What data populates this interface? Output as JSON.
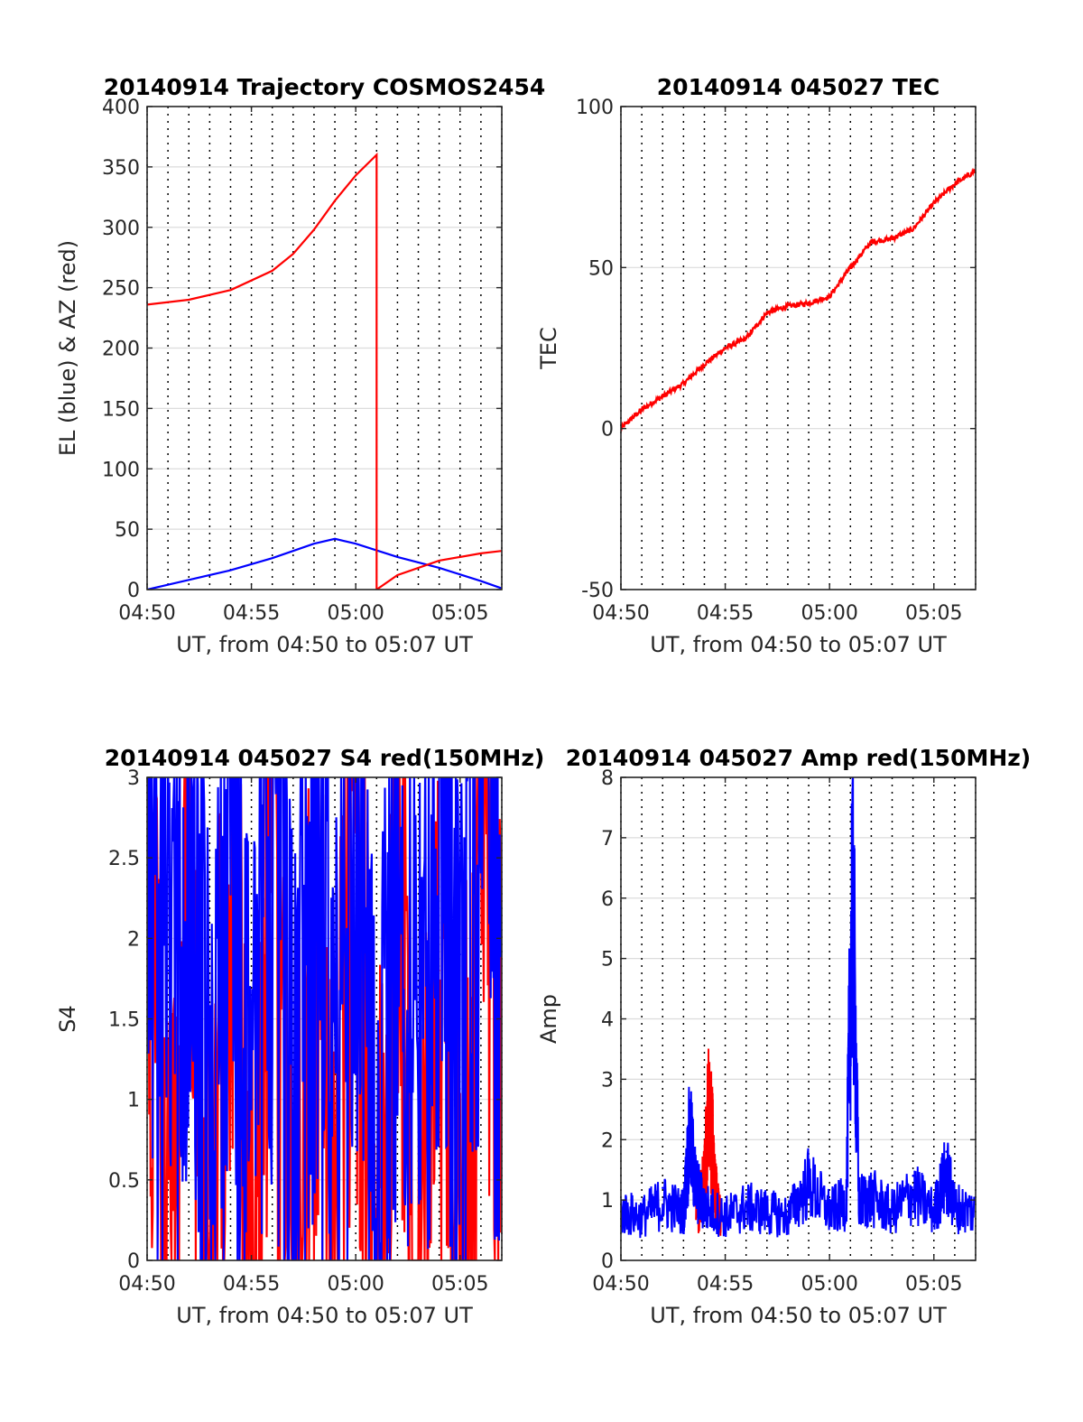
{
  "chart_data": [
    {
      "type": "line",
      "title": "20140914 Trajectory COSMOS2454",
      "xlabel": "UT, from 04:50 to 05:07 UT",
      "ylabel": "EL (blue) & AZ (red)",
      "xlim": [
        "04:50",
        "05:07"
      ],
      "ylim": [
        0,
        400
      ],
      "x_ticks": [
        "04:50",
        "04:55",
        "05:00",
        "05:05"
      ],
      "y_ticks": [
        0,
        50,
        100,
        150,
        200,
        250,
        300,
        350,
        400
      ],
      "grid": true,
      "series": [
        {
          "color": "#0000ff",
          "x": [
            "04:50",
            "04:52",
            "04:54",
            "04:56",
            "04:58",
            "04:59",
            "05:00",
            "05:02",
            "05:04",
            "05:06",
            "05:07"
          ],
          "values": [
            0,
            8,
            16,
            26,
            38,
            42,
            38,
            27,
            18,
            7,
            1
          ]
        },
        {
          "color": "#ff0000",
          "x": [
            "04:50",
            "04:52",
            "04:54",
            "04:56",
            "04:57",
            "04:58",
            "04:59",
            "05:00",
            "05:01",
            "05:01",
            "05:02",
            "05:04",
            "05:06",
            "05:07"
          ],
          "values": [
            236,
            240,
            248,
            264,
            278,
            298,
            322,
            343,
            360,
            0,
            12,
            24,
            30,
            32
          ]
        }
      ]
    },
    {
      "type": "line",
      "title": "20140914 045027 TEC",
      "xlabel": "UT, from 04:50 to 05:07 UT",
      "ylabel": "TEC",
      "xlim": [
        "04:50",
        "05:07"
      ],
      "ylim": [
        -50,
        100
      ],
      "x_ticks": [
        "04:50",
        "04:55",
        "05:00",
        "05:05"
      ],
      "y_ticks": [
        -50,
        0,
        50,
        100
      ],
      "grid": true,
      "series": [
        {
          "color": "#ff0000",
          "x": [
            "04:50",
            "04:51",
            "04:52",
            "04:53",
            "04:54",
            "04:55",
            "04:56",
            "04:57",
            "04:58",
            "04:59",
            "05:00",
            "05:01",
            "05:02",
            "05:03",
            "05:04",
            "05:05",
            "05:06",
            "05:07"
          ],
          "values": [
            0,
            6,
            10,
            14,
            20,
            25,
            28,
            36,
            38,
            39,
            41,
            50,
            58,
            59,
            62,
            70,
            76,
            80
          ]
        }
      ]
    },
    {
      "type": "line",
      "title": "20140914 045027 S4 red(150MHz)",
      "xlabel": "UT, from 04:50 to 05:07 UT",
      "ylabel": "S4",
      "xlim": [
        "04:50",
        "05:07"
      ],
      "ylim": [
        0,
        3
      ],
      "x_ticks": [
        "04:50",
        "04:55",
        "05:00",
        "05:05"
      ],
      "y_ticks": [
        0,
        0.5,
        1,
        1.5,
        2,
        2.5,
        3
      ],
      "grid": true,
      "series": [
        {
          "color": "#ff0000",
          "x": [
            "04:50",
            "04:51",
            "04:52",
            "04:53",
            "04:54",
            "04:55",
            "04:56",
            "04:57",
            "04:58",
            "04:59",
            "05:00",
            "05:01",
            "05:02",
            "05:03",
            "05:04",
            "05:05",
            "05:06",
            "05:07"
          ],
          "values": [
            3,
            0,
            2.5,
            0,
            3,
            0,
            3,
            0.1,
            2,
            0.9,
            3,
            0,
            3,
            0,
            1.8,
            0,
            2.9,
            1.9
          ]
        },
        {
          "color": "#0000ff",
          "x": [
            "04:50",
            "04:51",
            "04:52",
            "04:53",
            "04:54",
            "04:55",
            "04:56",
            "04:57",
            "04:58",
            "04:59",
            "05:00",
            "05:01",
            "05:02",
            "05:03",
            "05:04",
            "05:05",
            "05:06",
            "05:07"
          ],
          "values": [
            2.9,
            1.8,
            3,
            1.2,
            2.5,
            1.5,
            3,
            1.6,
            2.8,
            1.4,
            3,
            0.5,
            2.9,
            1.7,
            3,
            1.9,
            2.8,
            2.2
          ]
        }
      ]
    },
    {
      "type": "line",
      "title": "20140914 045027 Amp red(150MHz)",
      "xlabel": "UT, from 04:50 to 05:07 UT",
      "ylabel": "Amp",
      "xlim": [
        "04:50",
        "05:07"
      ],
      "ylim": [
        0,
        8
      ],
      "x_ticks": [
        "04:50",
        "04:55",
        "05:00",
        "05:05"
      ],
      "y_ticks": [
        0,
        1,
        2,
        3,
        4,
        5,
        6,
        7,
        8
      ],
      "grid": true,
      "series": [
        {
          "color": "#ff0000",
          "x": [
            "04:53.6",
            "04:54.0",
            "04:54.2",
            "04:54.4",
            "04:54.6",
            "04:54.8"
          ],
          "values": [
            0.9,
            1.6,
            3.1,
            2.4,
            1.2,
            0.8
          ]
        },
        {
          "color": "#0000ff",
          "x": [
            "04:50",
            "04:51",
            "04:52",
            "04:53",
            "04:53.3",
            "04:53.6",
            "04:54",
            "04:55",
            "04:56",
            "04:57",
            "04:58",
            "04:59",
            "05:00",
            "05:00.8",
            "05:01.1",
            "05:01.4",
            "05:02",
            "05:03",
            "05:04",
            "05:05",
            "05:05.6",
            "05:06",
            "05:07"
          ],
          "values": [
            1.0,
            0.9,
            1.2,
            1.0,
            2.6,
            1.5,
            1.1,
            0.9,
            1.1,
            1.0,
            0.9,
            1.6,
            1.0,
            1.2,
            7.9,
            1.2,
            1.3,
            1.0,
            1.4,
            1.0,
            1.8,
            1.1,
            1.0
          ]
        }
      ]
    }
  ]
}
